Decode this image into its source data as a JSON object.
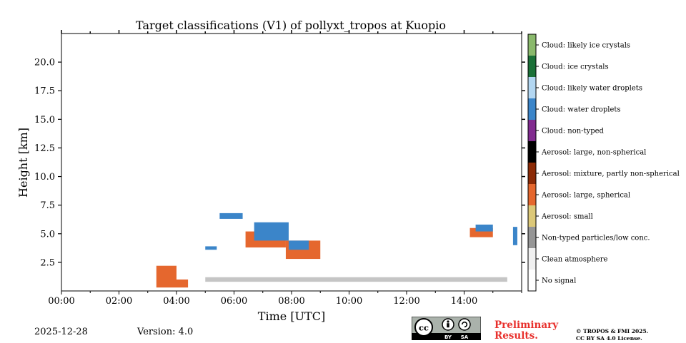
{
  "chart_data": {
    "type": "heatmap",
    "title": "Target classifications (V1) of pollyxt_tropos at Kuopio",
    "xlabel": "Time [UTC]",
    "ylabel": "Height [km]",
    "xlim_hours": [
      0,
      16
    ],
    "ylim_km": [
      0,
      22.5
    ],
    "x_ticks": [
      {
        "v": 0,
        "label": "00:00"
      },
      {
        "v": 2,
        "label": "02:00"
      },
      {
        "v": 4,
        "label": "04:00"
      },
      {
        "v": 6,
        "label": "06:00"
      },
      {
        "v": 8,
        "label": "08:00"
      },
      {
        "v": 10,
        "label": "10:00"
      },
      {
        "v": 12,
        "label": "12:00"
      },
      {
        "v": 14,
        "label": "14:00"
      }
    ],
    "y_ticks": [
      {
        "v": 2.5,
        "label": "2.5"
      },
      {
        "v": 5.0,
        "label": "5.0"
      },
      {
        "v": 7.5,
        "label": "7.5"
      },
      {
        "v": 10.0,
        "label": "10.0"
      },
      {
        "v": 12.5,
        "label": "12.5"
      },
      {
        "v": 15.0,
        "label": "15.0"
      },
      {
        "v": 17.5,
        "label": "17.5"
      },
      {
        "v": 20.0,
        "label": "20.0"
      }
    ],
    "classes": [
      {
        "label": "No signal",
        "color": "#ffffff"
      },
      {
        "label": "Clean atmosphere",
        "color": "#f0f0f0"
      },
      {
        "label": "Non-typed particles/low conc.",
        "color": "#969696"
      },
      {
        "label": "Aerosol: small",
        "color": "#dcc878"
      },
      {
        "label": "Aerosol: large, spherical",
        "color": "#e5672e"
      },
      {
        "label": "Aerosol: mixture, partly non-spherical",
        "color": "#8b2a06"
      },
      {
        "label": "Aerosol: large, non-spherical",
        "color": "#000000"
      },
      {
        "label": "Cloud: non-typed",
        "color": "#812b8f"
      },
      {
        "label": "Cloud: water droplets",
        "color": "#3b85c9"
      },
      {
        "label": "Cloud: likely water droplets",
        "color": "#b3d7f2"
      },
      {
        "label": "Cloud: ice crystals",
        "color": "#1b7138"
      },
      {
        "label": "Cloud: likely ice crystals",
        "color": "#8ab96c"
      }
    ],
    "features": [
      {
        "name": "boundary-layer aerosol",
        "cls": 4,
        "t0": 3.3,
        "t1": 4.0,
        "h0": 0.3,
        "h1": 2.2
      },
      {
        "name": "boundary-layer aerosol",
        "cls": 4,
        "t0": 4.0,
        "t1": 4.4,
        "h0": 0.3,
        "h1": 1.0
      },
      {
        "name": "elevated aerosol layer",
        "cls": 4,
        "t0": 6.4,
        "t1": 7.8,
        "h0": 3.8,
        "h1": 5.2
      },
      {
        "name": "elevated aerosol layer",
        "cls": 4,
        "t0": 7.8,
        "t1": 9.0,
        "h0": 2.8,
        "h1": 4.4
      },
      {
        "name": "elevated aerosol layer",
        "cls": 4,
        "t0": 14.2,
        "t1": 15.0,
        "h0": 4.7,
        "h1": 5.5
      },
      {
        "name": "water cloud",
        "cls": 8,
        "t0": 6.7,
        "t1": 7.9,
        "h0": 4.4,
        "h1": 6.0
      },
      {
        "name": "water cloud",
        "cls": 8,
        "t0": 7.9,
        "t1": 8.6,
        "h0": 3.6,
        "h1": 4.4
      },
      {
        "name": "water cloud",
        "cls": 8,
        "t0": 14.4,
        "t1": 15.0,
        "h0": 5.2,
        "h1": 5.8
      },
      {
        "name": "water cloud",
        "cls": 8,
        "t0": 5.5,
        "t1": 6.3,
        "h0": 6.3,
        "h1": 6.8
      },
      {
        "name": "water cloud",
        "cls": 8,
        "t0": 5.0,
        "t1": 5.4,
        "h0": 3.6,
        "h1": 3.9
      },
      {
        "name": "water cloud",
        "cls": 8,
        "t0": 15.7,
        "t1": 15.85,
        "h0": 4.0,
        "h1": 5.6
      },
      {
        "name": "low particles",
        "cls": 2,
        "t0": 5.0,
        "t1": 15.5,
        "h0": 0.8,
        "h1": 1.2
      }
    ]
  },
  "footer": {
    "date": "2025-12-28",
    "version": "Version: 4.0",
    "preliminary": [
      "Preliminary",
      "Results."
    ],
    "copyright": [
      "© TROPOS & FMI 2025.",
      "CC BY SA 4.0 License."
    ],
    "cc_icon": "cc-by-sa-icon",
    "cc_by": "BY",
    "cc_sa": "SA"
  }
}
